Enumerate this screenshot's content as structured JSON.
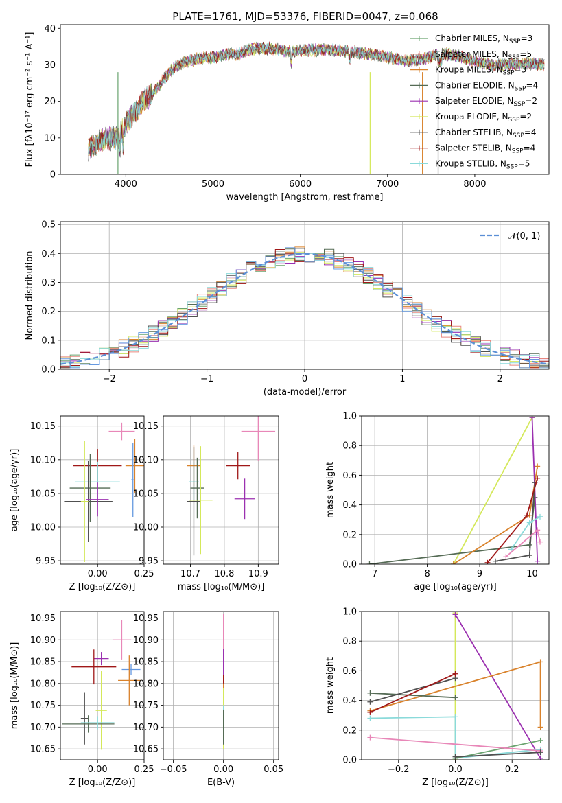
{
  "title": "PLATE=1761, MJD=53376, FIBERID=0047, z=0.068",
  "colors": {
    "Chabrier MILES": "#6aa36f",
    "Salpeter MILES": "#e8877f",
    "Kroupa MILES": "#d9822b",
    "Chabrier ELODIE": "#556b55",
    "Salpeter ELODIE": "#9b30b0",
    "Kroupa ELODIE": "#d4e85a",
    "Chabrier STELIB": "#505050",
    "Salpeter STELIB": "#a01818",
    "Kroupa STELIB": "#8adada",
    "extra_pink": "#e887b8",
    "extra_blue": "#6699e0",
    "normal_curve": "#5b8fd6"
  },
  "chart_data": [
    {
      "id": "spectrum",
      "type": "line",
      "xlabel": "wavelength [Angstrom, rest frame]",
      "ylabel": "Flux [fλ10⁻¹⁷ erg cm⁻² s⁻¹ A⁻¹]",
      "xlim": [
        3250,
        8850
      ],
      "ylim": [
        0,
        41
      ],
      "xticks": [
        "4000",
        "5000",
        "6000",
        "7000",
        "8000"
      ],
      "yticks": [
        "0",
        "10",
        "20",
        "30",
        "40"
      ],
      "legend": [
        "Chabrier MILES, N_SSP=3",
        "Salpeter MILES, N_SSP=5",
        "Kroupa MILES, N_SSP=3",
        "Chabrier ELODIE, N_SSP=4",
        "Salpeter ELODIE, N_SSP=2",
        "Kroupa ELODIE, N_SSP=2",
        "Chabrier STELIB, N_SSP=4",
        "Salpeter STELIB, N_SSP=4",
        "Kroupa STELIB, N_SSP=5"
      ],
      "continuum": [
        [
          3570,
          7
        ],
        [
          3700,
          9
        ],
        [
          3800,
          10
        ],
        [
          3920,
          10
        ],
        [
          4000,
          14
        ],
        [
          4100,
          17
        ],
        [
          4200,
          20
        ],
        [
          4300,
          22
        ],
        [
          4400,
          25
        ],
        [
          4500,
          28
        ],
        [
          4600,
          30
        ],
        [
          4700,
          31
        ],
        [
          4800,
          31.5
        ],
        [
          4900,
          32
        ],
        [
          5000,
          32
        ],
        [
          5100,
          32.5
        ],
        [
          5200,
          33
        ],
        [
          5300,
          33
        ],
        [
          5400,
          34
        ],
        [
          5500,
          34.5
        ],
        [
          5600,
          34.5
        ],
        [
          5700,
          34.5
        ],
        [
          5800,
          34
        ],
        [
          5900,
          33.5
        ],
        [
          6000,
          34
        ],
        [
          6200,
          34
        ],
        [
          6400,
          34
        ],
        [
          6600,
          33.5
        ],
        [
          6800,
          33
        ],
        [
          7000,
          32
        ],
        [
          7200,
          31
        ],
        [
          7400,
          31.5
        ],
        [
          7600,
          33
        ],
        [
          7800,
          32.5
        ],
        [
          8000,
          31
        ],
        [
          8200,
          30
        ],
        [
          8400,
          30
        ],
        [
          8600,
          30.5
        ],
        [
          8800,
          30
        ]
      ]
    },
    {
      "id": "residuals",
      "type": "bar",
      "xlabel": "(data-model)/error",
      "ylabel": "Normed distribution",
      "xlim": [
        -2.5,
        2.5
      ],
      "ylim": [
        0,
        0.51
      ],
      "xticks": [
        "−2",
        "−1",
        "0",
        "1",
        "2"
      ],
      "yticks": [
        "0.0",
        "0.1",
        "0.2",
        "0.3",
        "0.4",
        "0.5"
      ],
      "legend_label": "𝒩(0, 1)"
    },
    {
      "id": "age-vs-Z",
      "type": "scatter",
      "xlabel": "Z [log₁₀(Z/Z⊙)]",
      "ylabel": "age  [log₁₀(age/yr)]",
      "xlim": [
        -0.2,
        0.25
      ],
      "ylim": [
        9.945,
        10.165
      ],
      "xticks": [
        "0.00",
        "0.25"
      ],
      "yticks": [
        "9.95",
        "10.00",
        "10.05",
        "10.10",
        "10.15"
      ],
      "points": [
        {
          "c": "extra_pink",
          "x": 0.13,
          "y": 10.142,
          "xe": 0.07,
          "ye": 0.013
        },
        {
          "c": "Kroupa MILES",
          "x": 0.2,
          "y": 10.091,
          "xe": 0.05,
          "ye": 0.04
        },
        {
          "c": "Salpeter STELIB",
          "x": 0.0,
          "y": 10.091,
          "xe": 0.13,
          "ye": 0.025
        },
        {
          "c": "extra_blue",
          "x": 0.19,
          "y": 10.07,
          "xe": 0.01,
          "ye": 0.055
        },
        {
          "c": "Kroupa STELIB",
          "x": 0.0,
          "y": 10.067,
          "xe": 0.12,
          "ye": 0.03
        },
        {
          "c": "Chabrier ELODIE",
          "x": -0.04,
          "y": 10.058,
          "xe": 0.11,
          "ye": 0.05
        },
        {
          "c": "Chabrier STELIB",
          "x": -0.05,
          "y": 10.038,
          "xe": 0.13,
          "ye": 0.06
        },
        {
          "c": "Salpeter ELODIE",
          "x": 0.0,
          "y": 10.041,
          "xe": 0.06,
          "ye": 0.025
        },
        {
          "c": "Kroupa ELODIE",
          "x": -0.07,
          "y": 10.038,
          "xe": 0.02,
          "ye": 0.09
        }
      ]
    },
    {
      "id": "age-vs-mass",
      "type": "scatter",
      "xlabel": "mass [log₁₀(M/M⊙)]",
      "xlim": [
        10.62,
        10.96
      ],
      "ylim": [
        9.945,
        10.165
      ],
      "xticks": [
        "10.7",
        "10.8",
        "10.9"
      ],
      "yticks": [
        "9.95",
        "10.00",
        "10.05",
        "10.10",
        "10.15"
      ],
      "points": [
        {
          "c": "extra_pink",
          "x": 10.9,
          "y": 10.142,
          "xe": 0.05,
          "ye": 0.043
        },
        {
          "c": "Salpeter STELIB",
          "x": 10.84,
          "y": 10.091,
          "xe": 0.035,
          "ye": 0.02
        },
        {
          "c": "Kroupa MILES",
          "x": 10.71,
          "y": 10.091,
          "xe": 0.02,
          "ye": 0.03
        },
        {
          "c": "Kroupa STELIB",
          "x": 10.71,
          "y": 10.067,
          "xe": 0.015,
          "ye": 0.03
        },
        {
          "c": "Chabrier ELODIE",
          "x": 10.72,
          "y": 10.058,
          "xe": 0.02,
          "ye": 0.045
        },
        {
          "c": "Salpeter ELODIE",
          "x": 10.86,
          "y": 10.042,
          "xe": 0.03,
          "ye": 0.03
        },
        {
          "c": "Chabrier STELIB",
          "x": 10.71,
          "y": 10.038,
          "xe": 0.02,
          "ye": 0.08
        },
        {
          "c": "Kroupa ELODIE",
          "x": 10.73,
          "y": 10.04,
          "xe": 0.035,
          "ye": 0.08
        }
      ]
    },
    {
      "id": "weight-vs-age",
      "type": "line",
      "xlabel": "age  [log₁₀(age/yr)]",
      "ylabel": "mass weight",
      "xlim": [
        6.75,
        10.32
      ],
      "ylim": [
        0,
        1
      ],
      "xticks": [
        "7",
        "8",
        "9",
        "10"
      ],
      "yticks": [
        "0.0",
        "0.2",
        "0.4",
        "0.6",
        "0.8",
        "1.0"
      ],
      "series": [
        {
          "c": "Kroupa ELODIE",
          "pts": [
            [
              8.5,
              0.0
            ],
            [
              10.0,
              0.99
            ]
          ]
        },
        {
          "c": "Chabrier ELODIE",
          "pts": [
            [
              6.9,
              0.0
            ],
            [
              9.95,
              0.13
            ],
            [
              10.05,
              0.45
            ]
          ]
        },
        {
          "c": "Kroupa MILES",
          "pts": [
            [
              8.5,
              0.0
            ],
            [
              9.95,
              0.33
            ],
            [
              10.1,
              0.66
            ]
          ]
        },
        {
          "c": "Salpeter ELODIE",
          "pts": [
            [
              10.0,
              0.99
            ],
            [
              10.1,
              0.02
            ]
          ]
        },
        {
          "c": "Chabrier STELIB",
          "pts": [
            [
              9.3,
              0.02
            ],
            [
              9.95,
              0.06
            ],
            [
              10.05,
              0.55
            ]
          ]
        },
        {
          "c": "Salpeter STELIB",
          "pts": [
            [
              9.15,
              0.01
            ],
            [
              9.9,
              0.33
            ],
            [
              10.1,
              0.58
            ]
          ]
        },
        {
          "c": "Kroupa STELIB",
          "pts": [
            [
              9.6,
              0.1
            ],
            [
              9.95,
              0.28
            ],
            [
              10.15,
              0.32
            ]
          ]
        },
        {
          "c": "extra_pink",
          "pts": [
            [
              9.5,
              0.05
            ],
            [
              10.1,
              0.23
            ],
            [
              10.15,
              0.15
            ]
          ]
        }
      ]
    },
    {
      "id": "mass-vs-Z",
      "type": "scatter",
      "xlabel": "Z [log₁₀(Z/Z⊙)]",
      "ylabel": "mass [log₁₀(M/M⊙)]",
      "xlim": [
        -0.2,
        0.25
      ],
      "ylim": [
        10.625,
        10.965
      ],
      "xticks": [
        "0.00",
        "0.25"
      ],
      "yticks": [
        "10.65",
        "10.70",
        "10.75",
        "10.80",
        "10.85",
        "10.90",
        "10.95"
      ],
      "points": [
        {
          "c": "extra_pink",
          "x": 0.13,
          "y": 10.9,
          "xe": 0.05,
          "ye": 0.045
        },
        {
          "c": "Salpeter ELODIE",
          "x": 0.02,
          "y": 10.857,
          "xe": 0.04,
          "ye": 0.015
        },
        {
          "c": "Salpeter STELIB",
          "x": -0.02,
          "y": 10.838,
          "xe": 0.12,
          "ye": 0.04
        },
        {
          "c": "extra_blue",
          "x": 0.18,
          "y": 10.832,
          "xe": 0.05,
          "ye": 0.013
        },
        {
          "c": "Kroupa MILES",
          "x": 0.17,
          "y": 10.807,
          "xe": 0.06,
          "ye": 0.057
        },
        {
          "c": "Chabrier STELIB",
          "x": -0.07,
          "y": 10.72,
          "xe": 0.02,
          "ye": 0.06
        },
        {
          "c": "Kroupa ELODIE",
          "x": 0.02,
          "y": 10.738,
          "xe": 0.03,
          "ye": 0.09
        },
        {
          "c": "Chabrier ELODIE",
          "x": -0.05,
          "y": 10.707,
          "xe": 0.14,
          "ye": 0.02
        },
        {
          "c": "Kroupa STELIB",
          "x": 0.0,
          "y": 10.71,
          "xe": 0.09,
          "ye": 0.015
        }
      ]
    },
    {
      "id": "mass-vs-EBV",
      "type": "scatter",
      "xlabel": "E(B-V)",
      "xlim": [
        -0.06,
        0.055
      ],
      "ylim": [
        10.625,
        10.965
      ],
      "xticks": [
        "−0.05",
        "0.00",
        "0.05"
      ],
      "yticks": [
        "10.65",
        "10.70",
        "10.75",
        "10.80",
        "10.85",
        "10.90",
        "10.95"
      ],
      "points": [
        {
          "c": "extra_pink",
          "x": 0.0,
          "y": 10.9,
          "xe": 0.0,
          "ye": 0.06
        },
        {
          "c": "Salpeter STELIB",
          "x": 0.0,
          "y": 10.83,
          "xe": 0.0,
          "ye": 0.05
        },
        {
          "c": "Salpeter ELODIE",
          "x": 0.0,
          "y": 10.85,
          "xe": 0.0,
          "ye": 0.03
        },
        {
          "c": "Kroupa MILES",
          "x": 0.0,
          "y": 10.75,
          "xe": 0.0,
          "ye": 0.05
        },
        {
          "c": "Kroupa ELODIE",
          "x": 0.0,
          "y": 10.72,
          "xe": 0.0,
          "ye": 0.07
        },
        {
          "c": "Kroupa STELIB",
          "x": 0.0,
          "y": 10.71,
          "xe": 0.0,
          "ye": 0.04
        },
        {
          "c": "Chabrier ELODIE",
          "x": 0.0,
          "y": 10.7,
          "xe": 0.0,
          "ye": 0.04
        }
      ]
    },
    {
      "id": "weight-vs-Z",
      "type": "line",
      "xlabel": "Z [log₁₀(Z/Z⊙)]",
      "ylabel": "mass weight",
      "xlim": [
        -0.33,
        0.33
      ],
      "ylim": [
        0,
        1
      ],
      "xticks": [
        "−0.2",
        "0.0",
        "0.2"
      ],
      "yticks": [
        "0.0",
        "0.2",
        "0.4",
        "0.6",
        "0.8",
        "1.0"
      ],
      "series": [
        {
          "c": "Kroupa ELODIE",
          "pts": [
            [
              0.0,
              0.99
            ],
            [
              0.0,
              0.0
            ]
          ]
        },
        {
          "c": "Salpeter ELODIE",
          "pts": [
            [
              0.0,
              0.98
            ],
            [
              0.3,
              0.01
            ]
          ]
        },
        {
          "c": "Kroupa MILES",
          "pts": [
            [
              -0.3,
              0.33
            ],
            [
              0.3,
              0.66
            ],
            [
              0.3,
              0.22
            ]
          ]
        },
        {
          "c": "Chabrier ELODIE",
          "pts": [
            [
              -0.3,
              0.45
            ],
            [
              0.0,
              0.42
            ]
          ]
        },
        {
          "c": "Chabrier STELIB",
          "pts": [
            [
              -0.3,
              0.39
            ],
            [
              0.0,
              0.55
            ]
          ]
        },
        {
          "c": "Salpeter STELIB",
          "pts": [
            [
              -0.3,
              0.32
            ],
            [
              0.0,
              0.58
            ]
          ]
        },
        {
          "c": "Kroupa STELIB",
          "pts": [
            [
              -0.3,
              0.28
            ],
            [
              0.0,
              0.29
            ],
            [
              0.0,
              0.01
            ],
            [
              0.3,
              0.07
            ]
          ]
        },
        {
          "c": "Chabrier MILES",
          "pts": [
            [
              0.0,
              0.01
            ],
            [
              0.3,
              0.13
            ]
          ]
        },
        {
          "c": "extra_pink",
          "pts": [
            [
              -0.3,
              0.15
            ],
            [
              0.3,
              0.06
            ]
          ]
        },
        {
          "c": "Chabrier STELIB",
          "pts": [
            [
              0.0,
              0.02
            ],
            [
              0.3,
              0.05
            ]
          ]
        }
      ]
    }
  ]
}
